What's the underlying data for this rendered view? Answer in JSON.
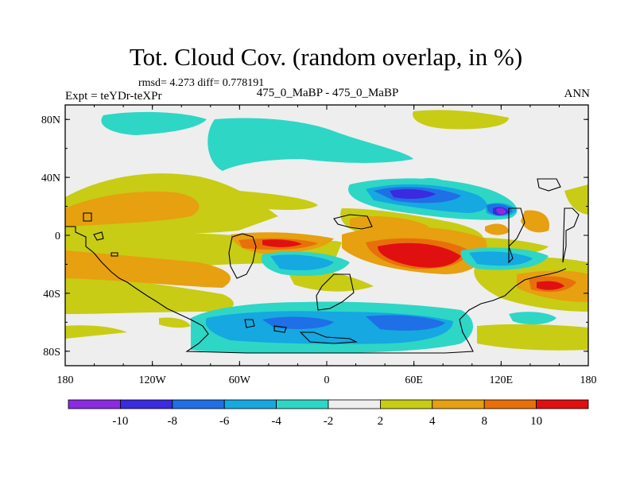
{
  "header": {
    "title": "Tot. Cloud Cov. (random overlap, in %)",
    "stats": "rmsd= 4.273 diff= 0.778191",
    "expt": "Expt = teYDr-teXPr",
    "case": "475_0_MaBP - 475_0_MaBP",
    "season": "ANN"
  },
  "map": {
    "lon_range": [
      -180,
      180
    ],
    "lat_range": [
      -90,
      90
    ],
    "x_ticks": [
      "180",
      "120W",
      "60W",
      "0",
      "60E",
      "120E",
      "180"
    ],
    "y_ticks": [
      "80N",
      "40N",
      "0",
      "40S",
      "80S"
    ]
  },
  "colorbar": {
    "labels": [
      "-10",
      "-8",
      "-6",
      "-4",
      "-2",
      "2",
      "4",
      "8",
      "10"
    ],
    "colors": [
      "#8a2be2",
      "#3a2ae0",
      "#1f6fe6",
      "#16a8e0",
      "#2ed6c6",
      "#eeeeee",
      "#c8cc14",
      "#e6a010",
      "#e8700a",
      "#e01010"
    ]
  },
  "palette": {
    "neutral": "#eeeeee",
    "pos_2_4": "#c8cc14",
    "pos_4_8": "#e6a010",
    "pos_8_10": "#e8700a",
    "pos_10": "#e01010",
    "neg_2_4": "#2ed6c6",
    "neg_4_6": "#16a8e0",
    "neg_6_8": "#1f6fe6",
    "neg_8_10": "#3a2ae0",
    "neg_10": "#8a2be2"
  }
}
